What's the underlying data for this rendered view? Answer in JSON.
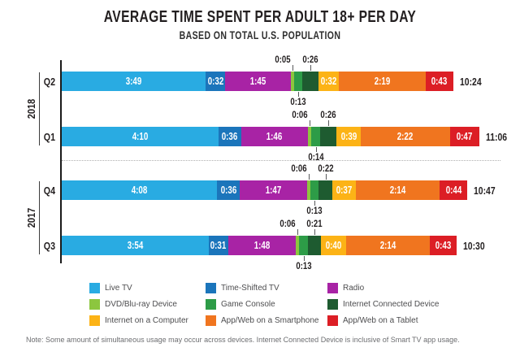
{
  "title": "AVERAGE TIME SPENT PER ADULT 18+ PER DAY",
  "subtitle": "BASED ON TOTAL U.S. POPULATION",
  "note": "Note: Some amount of simultaneous usage may occur across devices. Internet Connected Device is inclusive of Smart TV app usage.",
  "chart_data": {
    "type": "bar",
    "orientation": "horizontal",
    "stacked": true,
    "unit": "h:mm per day",
    "categories": [
      "Live TV",
      "Time-Shifted TV",
      "Radio",
      "DVD/Blu-ray Device",
      "Game Console",
      "Internet Connected Device",
      "Internet on a Computer",
      "App/Web on a Smartphone",
      "App/Web on a Tablet"
    ],
    "series_colors": [
      "#29abe2",
      "#1b75bb",
      "#a823a5",
      "#8cc63f",
      "#2d9c47",
      "#1e5b30",
      "#fcb316",
      "#f0751f",
      "#dc1e25"
    ],
    "groups": [
      {
        "year": "2018",
        "rows": [
          {
            "quarter": "Q2",
            "values": [
              "3:49",
              "0:32",
              "1:45",
              "0:05",
              "0:13",
              "0:26",
              "0:32",
              "2:19",
              "0:43"
            ],
            "total": "10:24"
          },
          {
            "quarter": "Q1",
            "values": [
              "4:10",
              "0:36",
              "1:46",
              "0:06",
              "0:14",
              "0:26",
              "0:39",
              "2:22",
              "0:47"
            ],
            "total": "11:06"
          }
        ]
      },
      {
        "year": "2017",
        "rows": [
          {
            "quarter": "Q4",
            "values": [
              "4:08",
              "0:36",
              "1:47",
              "0:06",
              "0:13",
              "0:22",
              "0:37",
              "2:14",
              "0:44"
            ],
            "total": "10:47"
          },
          {
            "quarter": "Q3",
            "values": [
              "3:54",
              "0:31",
              "1:48",
              "0:06",
              "0:13",
              "0:21",
              "0:40",
              "2:14",
              "0:43"
            ],
            "total": "10:30"
          }
        ]
      }
    ],
    "callouts": {
      "above_categories": [
        "DVD/Blu-ray Device",
        "Internet Connected Device"
      ],
      "below_categories": [
        "Game Console"
      ]
    },
    "legend_position": "bottom"
  },
  "legend": {
    "items": [
      {
        "label": "Live TV"
      },
      {
        "label": "Time-Shifted TV"
      },
      {
        "label": "Radio"
      },
      {
        "label": "DVD/Blu-ray Device"
      },
      {
        "label": "Game Console"
      },
      {
        "label": "Internet Connected Device"
      },
      {
        "label": "Internet on a Computer"
      },
      {
        "label": "App/Web on a Smartphone"
      },
      {
        "label": "App/Web on a Tablet"
      }
    ]
  }
}
